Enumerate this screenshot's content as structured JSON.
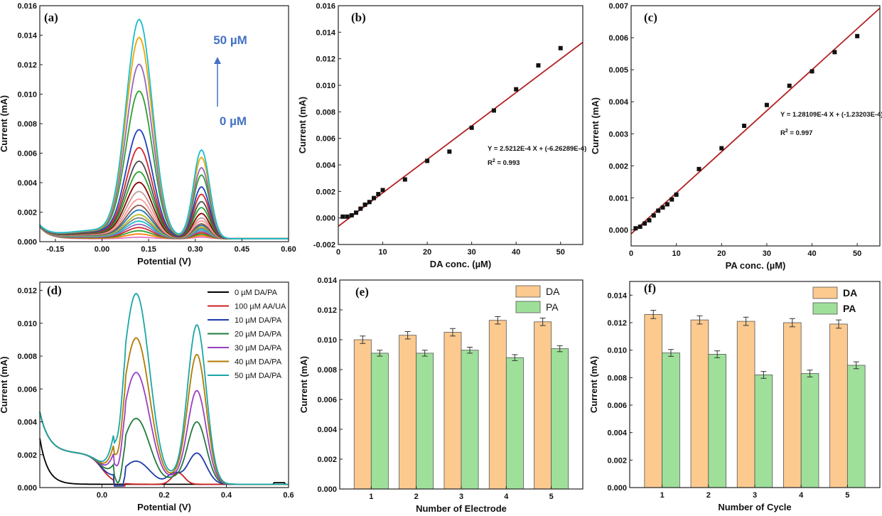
{
  "chart_data": [
    {
      "panel": "(a)",
      "type": "line",
      "xlabel": "Potential (V)",
      "ylabel": "Current (mA)",
      "xlim": [
        -0.2,
        0.6
      ],
      "ylim": [
        0,
        0.016
      ],
      "xticks": [
        "-0.15",
        "0.00",
        "0.15",
        "0.30",
        "0.45",
        "0.60"
      ],
      "yticks": [
        "0.000",
        "0.002",
        "0.004",
        "0.006",
        "0.008",
        "0.010",
        "0.012",
        "0.014",
        "0.016"
      ],
      "annotation_top": "50 µM",
      "annotation_bottom": "0 µM",
      "annotation_color": "#4472c4",
      "peak1_x": 0.12,
      "peak2_x": 0.32,
      "peak1_heights": [
        0.0001,
        0.0003,
        0.0005,
        0.0007,
        0.0009,
        0.0011,
        0.0013,
        0.0015,
        0.0018,
        0.0021,
        0.0025,
        0.003,
        0.0036,
        0.0043,
        0.005,
        0.0059,
        0.0071,
        0.0097,
        0.0115,
        0.0133,
        0.0145
      ],
      "peak2_heights": [
        0.0001,
        0.0002,
        0.0003,
        0.0004,
        0.0005,
        0.0006,
        0.0007,
        0.0008,
        0.0009,
        0.001,
        0.0012,
        0.0014,
        0.0017,
        0.0021,
        0.0025,
        0.003,
        0.0035,
        0.0043,
        0.0048,
        0.0055,
        0.006
      ],
      "colors": [
        "#e377c2",
        "#ff7f0e",
        "#2ca02c",
        "#d62728",
        "#9467bd",
        "#17becf",
        "#7f7f7f",
        "#bcbd22",
        "#1f77b4",
        "#8c564b",
        "#ff9896",
        "#c49c94",
        "#8b0000",
        "#2ca02c",
        "#4d4d4d",
        "#d62728",
        "#1f3fbf",
        "#2ca02c",
        "#9467bd",
        "#f0a500",
        "#17becf"
      ]
    },
    {
      "panel": "(b)",
      "type": "scatter",
      "xlabel": "DA conc. (µM)",
      "ylabel": "Current (mA)",
      "xlim": [
        0,
        55
      ],
      "ylim": [
        -0.002,
        0.016
      ],
      "xticks": [
        "0",
        "10",
        "20",
        "30",
        "40",
        "50"
      ],
      "yticks": [
        "-0.002",
        "0.000",
        "0.002",
        "0.004",
        "0.006",
        "0.008",
        "0.010",
        "0.012",
        "0.014",
        "0.016"
      ],
      "x": [
        1,
        2,
        3,
        4,
        5,
        6,
        7,
        8,
        9,
        10,
        15,
        20,
        25,
        30,
        35,
        40,
        45,
        50
      ],
      "y": [
        0.0001,
        0.0001,
        0.0002,
        0.0004,
        0.0007,
        0.001,
        0.0012,
        0.0015,
        0.0018,
        0.0021,
        0.0029,
        0.0043,
        0.005,
        0.0068,
        0.0081,
        0.0097,
        0.0115,
        0.0128
      ],
      "fit_slope": 0.00025212,
      "fit_intercept": -0.000626289,
      "fit_color": "#b22222",
      "equation": "Y = 2.5212E-4 X + (-6.26289E-4)",
      "r2_prefix": "R",
      "r2_sup": "2",
      "r2_value": " = 0.993"
    },
    {
      "panel": "(c)",
      "type": "scatter",
      "xlabel": "PA conc. (µM)",
      "ylabel": "Current (mA)",
      "xlim": [
        0,
        55
      ],
      "ylim": [
        -0.0005,
        0.007
      ],
      "xticks": [
        "0",
        "10",
        "20",
        "30",
        "40",
        "50"
      ],
      "yticks": [
        "0.000",
        "0.001",
        "0.002",
        "0.003",
        "0.004",
        "0.005",
        "0.006",
        "0.007"
      ],
      "x": [
        1,
        2,
        3,
        4,
        5,
        6,
        7,
        8,
        9,
        10,
        15,
        20,
        25,
        30,
        35,
        40,
        45,
        50
      ],
      "y": [
        5e-05,
        0.0001,
        0.0002,
        0.0003,
        0.00045,
        0.0006,
        0.0007,
        0.0008,
        0.00095,
        0.0011,
        0.0019,
        0.00255,
        0.00325,
        0.0039,
        0.0045,
        0.00495,
        0.00555,
        0.00605
      ],
      "fit_slope": 0.000128109,
      "fit_intercept": -0.000123203,
      "fit_color": "#b22222",
      "equation": "Y = 1.28109E-4 X + (-1.23203E-4)",
      "r2_prefix": "R",
      "r2_sup": "2",
      "r2_value": " = 0.997"
    },
    {
      "panel": "(d)",
      "type": "line",
      "xlabel": "Potential (V)",
      "ylabel": "Current (mA)",
      "xlim": [
        -0.2,
        0.6
      ],
      "ylim": [
        0,
        0.0125
      ],
      "xticks": [
        "0.0",
        "0.2",
        "0.4",
        "0.6"
      ],
      "yticks": [
        "0.000",
        "0.002",
        "0.004",
        "0.006",
        "0.008",
        "0.010",
        "0.012"
      ],
      "series": [
        {
          "name": "0 µM DA/PA",
          "color": "#000000",
          "peak1": 0.0,
          "peak2": 0.0
        },
        {
          "name": "100 µM AA/UA",
          "color": "#cc1f1f",
          "peak1": 0.0,
          "peak2": 0.0
        },
        {
          "name": "10 µM DA/PA",
          "color": "#1f3aa8",
          "peak1": 0.0014,
          "peak2": 0.0019
        },
        {
          "name": "20 µM DA/PA",
          "color": "#237a3e",
          "peak1": 0.004,
          "peak2": 0.0038
        },
        {
          "name": "30 µM DA/PA",
          "color": "#9b3fc4",
          "peak1": 0.0068,
          "peak2": 0.0057
        },
        {
          "name": "40 µM DA/PA",
          "color": "#b37a00",
          "peak1": 0.0089,
          "peak2": 0.0079
        },
        {
          "name": "50 µM DA/PA",
          "color": "#1aa6a6",
          "peak1": 0.0116,
          "peak2": 0.0097
        }
      ]
    },
    {
      "panel": "(e)",
      "type": "bar",
      "xlabel": "Number of Electrode",
      "ylabel": "Current (mA)",
      "categories": [
        "1",
        "2",
        "3",
        "4",
        "5"
      ],
      "ylim": [
        0,
        0.014
      ],
      "yticks": [
        "0.000",
        "0.002",
        "0.004",
        "0.006",
        "0.008",
        "0.010",
        "0.012",
        "0.014"
      ],
      "series": [
        {
          "name": "DA",
          "color": "#fcc98f",
          "values": [
            0.01,
            0.0103,
            0.0105,
            0.0113,
            0.0112
          ],
          "errors": [
            0.00025,
            0.00025,
            0.00025,
            0.00025,
            0.00025
          ]
        },
        {
          "name": "PA",
          "color": "#9ee09a",
          "values": [
            0.0091,
            0.0091,
            0.0093,
            0.0088,
            0.0094
          ],
          "errors": [
            0.0002,
            0.0002,
            0.0002,
            0.0002,
            0.0002
          ]
        }
      ]
    },
    {
      "panel": "(f)",
      "type": "bar",
      "xlabel": "Number of Cycle",
      "ylabel": "Current (mA)",
      "categories": [
        "1",
        "2",
        "3",
        "4",
        "5"
      ],
      "ylim": [
        0,
        0.015
      ],
      "yticks": [
        "0.000",
        "0.002",
        "0.004",
        "0.006",
        "0.008",
        "0.010",
        "0.012",
        "0.014"
      ],
      "series": [
        {
          "name": "DA",
          "color": "#fcc98f",
          "values": [
            0.0126,
            0.0122,
            0.0121,
            0.012,
            0.0119
          ],
          "errors": [
            0.0003,
            0.0003,
            0.0003,
            0.0003,
            0.0003
          ]
        },
        {
          "name": "PA",
          "color": "#9ee09a",
          "values": [
            0.0098,
            0.0097,
            0.0082,
            0.0083,
            0.0089
          ],
          "errors": [
            0.00025,
            0.00025,
            0.00025,
            0.00025,
            0.00025
          ]
        }
      ]
    }
  ]
}
